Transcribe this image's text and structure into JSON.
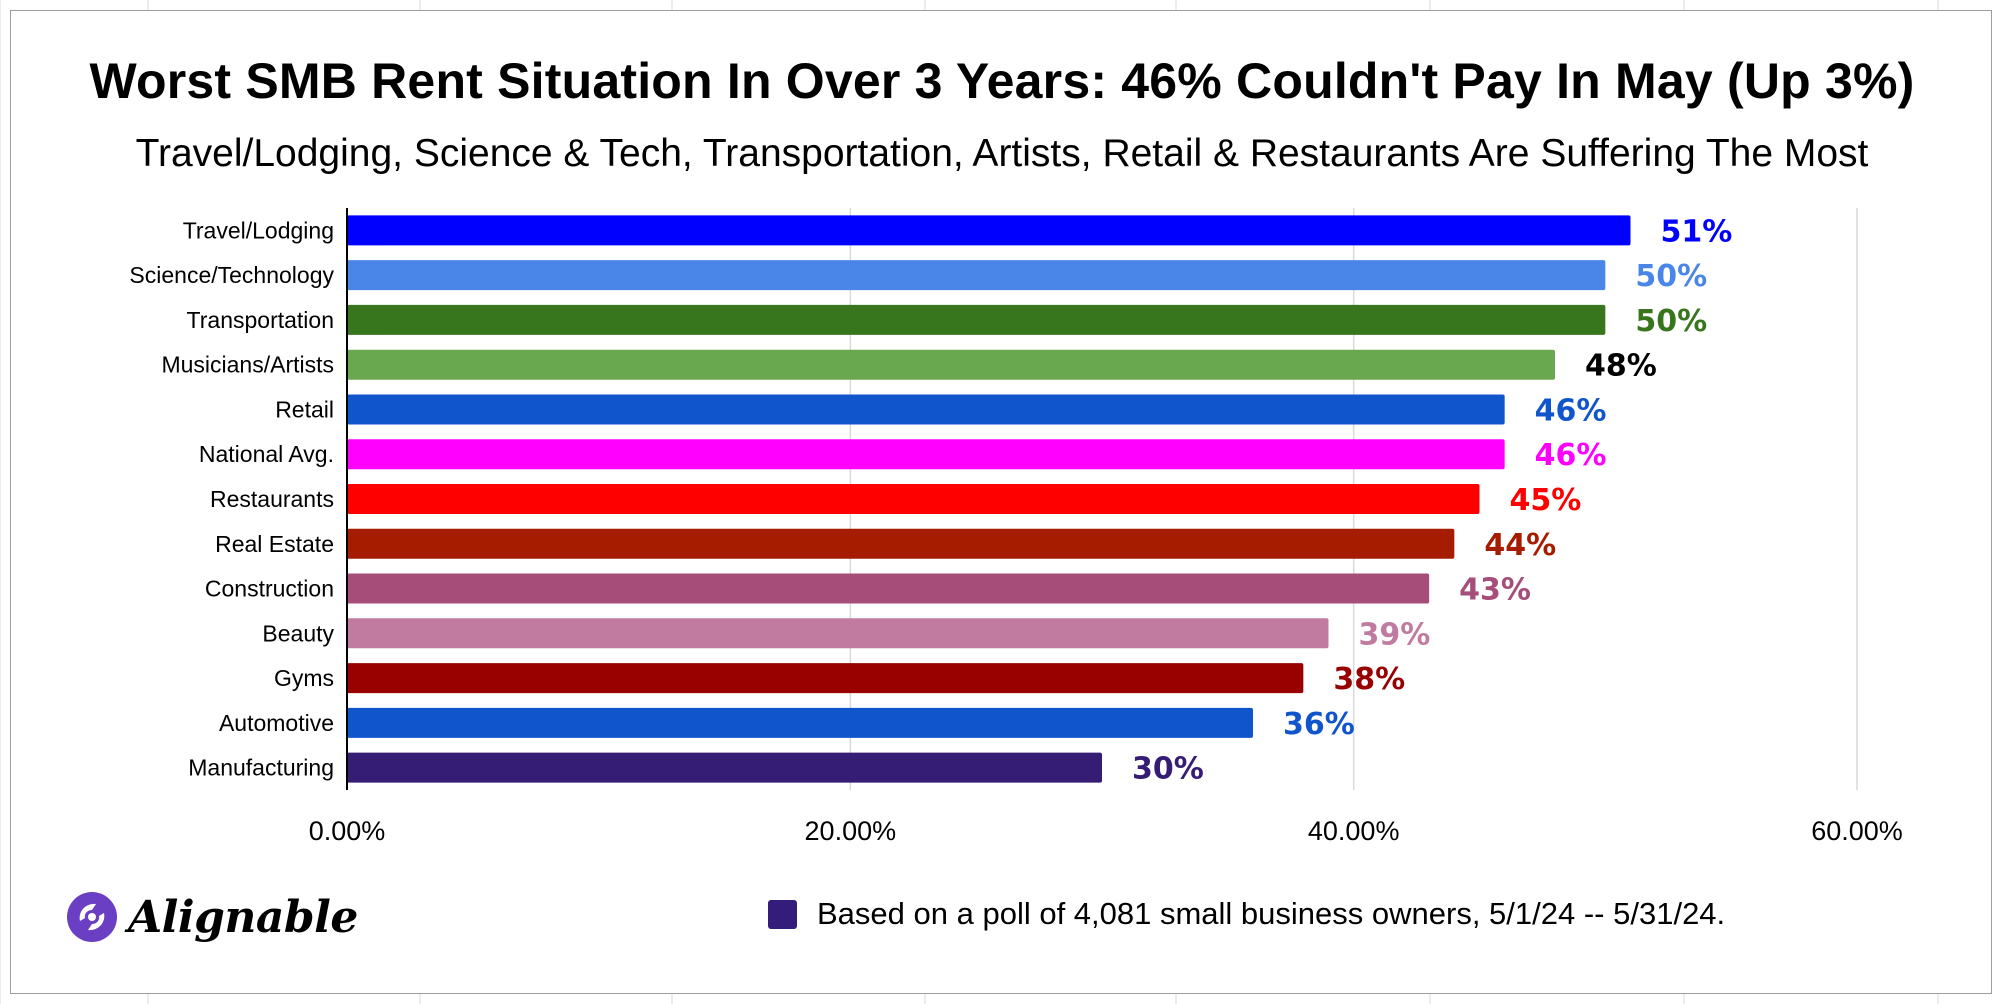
{
  "colors": {
    "frame_border": "#9e9e9e",
    "gridline": "#d9d9d9",
    "axis": "#000000",
    "logo_purple": "#6b3fc4",
    "legend_swatch": "#341d7a"
  },
  "logo": {
    "text": "Alignable",
    "icon": "alignable-logo-icon"
  },
  "legend": {
    "label": "Based on a poll of 4,081 small business owners, 5/1/24 -- 5/31/24."
  },
  "chart_data": {
    "type": "bar",
    "orientation": "horizontal",
    "title": "Worst SMB Rent Situation In Over 3 Years: 46% Couldn't Pay In May (Up 3%)",
    "subtitle": "Travel/Lodging, Science & Tech, Transportation, Artists, Retail & Restaurants Are Suffering The Most",
    "xlabel": "",
    "ylabel": "",
    "xlim": [
      0,
      60
    ],
    "xticks": [
      0,
      20,
      40,
      60
    ],
    "xtick_labels": [
      "0.00%",
      "20.00%",
      "40.00%",
      "60.00%"
    ],
    "grid": true,
    "legend_position": "bottom",
    "categories": [
      "Travel/Lodging",
      "Science/Technology",
      "Transportation",
      "Musicians/Artists",
      "Retail",
      "National Avg.",
      "Restaurants",
      "Real Estate",
      "Construction",
      "Beauty",
      "Gyms",
      "Automotive",
      "Manufacturing"
    ],
    "values": [
      51,
      50,
      50,
      48,
      46,
      46,
      45,
      44,
      43,
      39,
      38,
      36,
      30
    ],
    "data_labels": [
      "51%",
      "50%",
      "50%",
      "48%",
      "46%",
      "46%",
      "45%",
      "44%",
      "43%",
      "39%",
      "38%",
      "36%",
      "30%"
    ],
    "bar_colors": [
      "#0000ff",
      "#4a86e8",
      "#38761d",
      "#6aa84f",
      "#1155cc",
      "#ff00ff",
      "#ff0000",
      "#a61c00",
      "#a64d79",
      "#c27ba0",
      "#990000",
      "#1155cc",
      "#351c75"
    ],
    "label_colors": [
      "#0000ff",
      "#4a86e8",
      "#38761d",
      "#000000",
      "#1155cc",
      "#ff00ff",
      "#ff0000",
      "#a61c00",
      "#a64d79",
      "#c27ba0",
      "#990000",
      "#1155cc",
      "#351c75"
    ]
  }
}
